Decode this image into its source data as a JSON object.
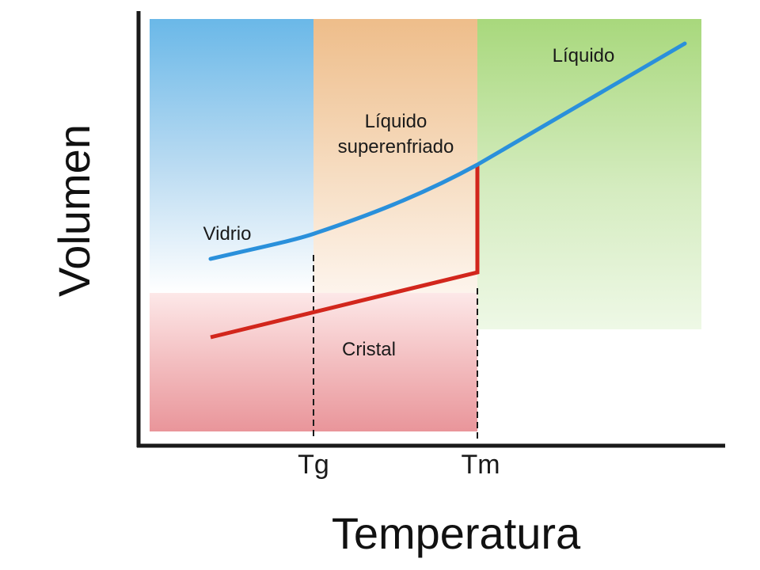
{
  "diagram": {
    "axes": {
      "x_title": "Temperatura",
      "y_title": "Volumen"
    },
    "ticks": {
      "tg": "Tg",
      "tm": "Tm"
    },
    "regions": {
      "glass": "Vidrio",
      "supercooled_line1": "Líquido",
      "supercooled_line2": "superenfriado",
      "liquid": "Líquido",
      "crystal": "Cristal"
    },
    "colors": {
      "glass_blue": "#6ab8e8",
      "supercooled_orange": "#eebd8a",
      "liquid_green": "#a8d87c",
      "crystal_red": "#e9959a",
      "liquid_curve": "#2a90db",
      "crystal_curve": "#d2261c",
      "axis": "#1a1a1a"
    }
  }
}
